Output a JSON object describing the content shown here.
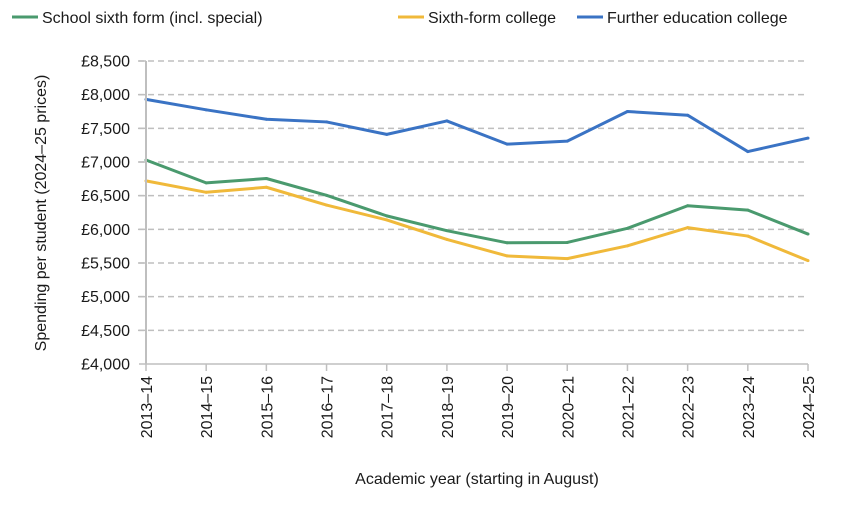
{
  "chart_data": {
    "type": "line",
    "title": "",
    "xlabel": "Academic year (starting in August)",
    "ylabel": "Spending per student (2024–25 prices)",
    "categories": [
      "2013–14",
      "2014–15",
      "2015–16",
      "2016–17",
      "2017–18",
      "2018–19",
      "2019–20",
      "2020–21",
      "2021–22",
      "2022–23",
      "2023–24",
      "2024–25"
    ],
    "ylim": [
      4000,
      8500
    ],
    "yticks": [
      4000,
      4500,
      5000,
      5500,
      6000,
      6500,
      7000,
      7500,
      8000,
      8500
    ],
    "ytick_labels": [
      "£4,000",
      "£4,500",
      "£5,000",
      "£5,500",
      "£6,000",
      "£6,500",
      "£7,000",
      "£7,500",
      "£8,000",
      "£8,500"
    ],
    "grid": "horizontal dashed",
    "legend_position": "top",
    "series": [
      {
        "name": "School sixth form (incl. special)",
        "color": "#4a9a6e",
        "values": [
          7030,
          6690,
          6755,
          6505,
          6200,
          5980,
          5800,
          5805,
          6015,
          6350,
          6285,
          5930
        ]
      },
      {
        "name": "Sixth-form college",
        "color": "#f0b93a",
        "values": [
          6720,
          6550,
          6625,
          6360,
          6140,
          5850,
          5605,
          5565,
          5755,
          6025,
          5900,
          5535
        ]
      },
      {
        "name": "Further education college",
        "color": "#3a73c4",
        "values": [
          7930,
          7775,
          7635,
          7595,
          7410,
          7610,
          7265,
          7310,
          7750,
          7695,
          7155,
          7355
        ]
      }
    ]
  }
}
